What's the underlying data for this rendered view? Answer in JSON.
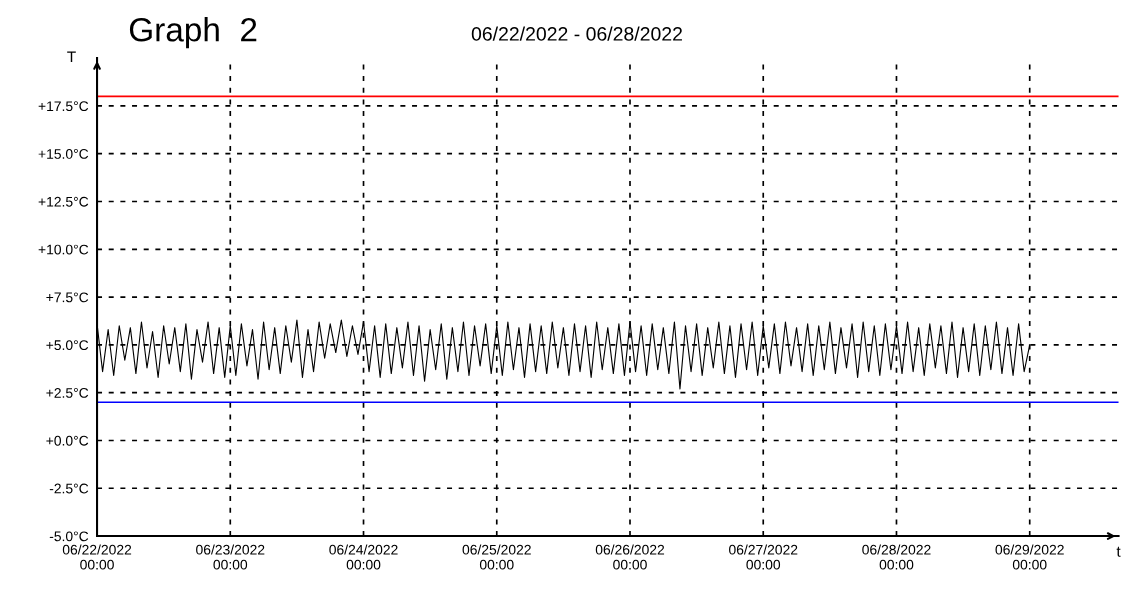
{
  "chart_data": {
    "type": "line",
    "title": "Graph  2",
    "subtitle": "06/22/2022 - 06/28/2022",
    "xlabel": "t",
    "ylabel": "T",
    "x": [
      "2022-06-22T00:00",
      "2022-06-22T01:00",
      "2022-06-22T02:00",
      "2022-06-22T03:00",
      "2022-06-22T04:00",
      "2022-06-22T05:00",
      "2022-06-22T06:00",
      "2022-06-22T07:00",
      "2022-06-22T08:00",
      "2022-06-22T09:00",
      "2022-06-22T10:00",
      "2022-06-22T11:00",
      "2022-06-22T12:00",
      "2022-06-22T13:00",
      "2022-06-22T14:00",
      "2022-06-22T15:00",
      "2022-06-22T16:00",
      "2022-06-22T17:00",
      "2022-06-22T18:00",
      "2022-06-22T19:00",
      "2022-06-22T20:00",
      "2022-06-22T21:00",
      "2022-06-22T22:00",
      "2022-06-22T23:00",
      "2022-06-23T00:00",
      "2022-06-23T01:00",
      "2022-06-23T02:00",
      "2022-06-23T03:00",
      "2022-06-23T04:00",
      "2022-06-23T05:00",
      "2022-06-23T06:00",
      "2022-06-23T07:00",
      "2022-06-23T08:00",
      "2022-06-23T09:00",
      "2022-06-23T10:00",
      "2022-06-23T11:00",
      "2022-06-23T12:00",
      "2022-06-23T13:00",
      "2022-06-23T14:00",
      "2022-06-23T15:00",
      "2022-06-23T16:00",
      "2022-06-23T17:00",
      "2022-06-23T18:00",
      "2022-06-23T19:00",
      "2022-06-23T20:00",
      "2022-06-23T21:00",
      "2022-06-23T22:00",
      "2022-06-23T23:00",
      "2022-06-24T00:00",
      "2022-06-24T01:00",
      "2022-06-24T02:00",
      "2022-06-24T03:00",
      "2022-06-24T04:00",
      "2022-06-24T05:00",
      "2022-06-24T06:00",
      "2022-06-24T07:00",
      "2022-06-24T08:00",
      "2022-06-24T09:00",
      "2022-06-24T10:00",
      "2022-06-24T11:00",
      "2022-06-24T12:00",
      "2022-06-24T13:00",
      "2022-06-24T14:00",
      "2022-06-24T15:00",
      "2022-06-24T16:00",
      "2022-06-24T17:00",
      "2022-06-24T18:00",
      "2022-06-24T19:00",
      "2022-06-24T20:00",
      "2022-06-24T21:00",
      "2022-06-24T22:00",
      "2022-06-24T23:00",
      "2022-06-25T00:00",
      "2022-06-25T01:00",
      "2022-06-25T02:00",
      "2022-06-25T03:00",
      "2022-06-25T04:00",
      "2022-06-25T05:00",
      "2022-06-25T06:00",
      "2022-06-25T07:00",
      "2022-06-25T08:00",
      "2022-06-25T09:00",
      "2022-06-25T10:00",
      "2022-06-25T11:00",
      "2022-06-25T12:00",
      "2022-06-25T13:00",
      "2022-06-25T14:00",
      "2022-06-25T15:00",
      "2022-06-25T16:00",
      "2022-06-25T17:00",
      "2022-06-25T18:00",
      "2022-06-25T19:00",
      "2022-06-25T20:00",
      "2022-06-25T21:00",
      "2022-06-25T22:00",
      "2022-06-25T23:00",
      "2022-06-26T00:00",
      "2022-06-26T01:00",
      "2022-06-26T02:00",
      "2022-06-26T03:00",
      "2022-06-26T04:00",
      "2022-06-26T05:00",
      "2022-06-26T06:00",
      "2022-06-26T07:00",
      "2022-06-26T08:00",
      "2022-06-26T09:00",
      "2022-06-26T10:00",
      "2022-06-26T11:00",
      "2022-06-26T12:00",
      "2022-06-26T13:00",
      "2022-06-26T14:00",
      "2022-06-26T15:00",
      "2022-06-26T16:00",
      "2022-06-26T17:00",
      "2022-06-26T18:00",
      "2022-06-26T19:00",
      "2022-06-26T20:00",
      "2022-06-26T21:00",
      "2022-06-26T22:00",
      "2022-06-26T23:00",
      "2022-06-27T00:00",
      "2022-06-27T01:00",
      "2022-06-27T02:00",
      "2022-06-27T03:00",
      "2022-06-27T04:00",
      "2022-06-27T05:00",
      "2022-06-27T06:00",
      "2022-06-27T07:00",
      "2022-06-27T08:00",
      "2022-06-27T09:00",
      "2022-06-27T10:00",
      "2022-06-27T11:00",
      "2022-06-27T12:00",
      "2022-06-27T13:00",
      "2022-06-27T14:00",
      "2022-06-27T15:00",
      "2022-06-27T16:00",
      "2022-06-27T17:00",
      "2022-06-27T18:00",
      "2022-06-27T19:00",
      "2022-06-27T20:00",
      "2022-06-27T21:00",
      "2022-06-27T22:00",
      "2022-06-27T23:00",
      "2022-06-28T00:00",
      "2022-06-28T01:00",
      "2022-06-28T02:00",
      "2022-06-28T03:00",
      "2022-06-28T04:00",
      "2022-06-28T05:00",
      "2022-06-28T06:00",
      "2022-06-28T07:00",
      "2022-06-28T08:00",
      "2022-06-28T09:00",
      "2022-06-28T10:00",
      "2022-06-28T11:00",
      "2022-06-28T12:00",
      "2022-06-28T13:00",
      "2022-06-28T14:00",
      "2022-06-28T15:00",
      "2022-06-28T16:00",
      "2022-06-28T17:00",
      "2022-06-28T18:00",
      "2022-06-28T19:00",
      "2022-06-28T20:00",
      "2022-06-28T21:00",
      "2022-06-28T22:00",
      "2022-06-28T23:00",
      "2022-06-29T00:00"
    ],
    "series": [
      {
        "color": "#000000",
        "values": [
          6.1,
          3.6,
          5.8,
          3.4,
          6.0,
          4.2,
          5.9,
          3.5,
          6.2,
          3.8,
          5.7,
          3.3,
          6.0,
          4.0,
          5.9,
          3.6,
          6.1,
          3.2,
          5.8,
          4.1,
          6.2,
          3.5,
          5.9,
          3.3,
          6.0,
          3.4,
          6.1,
          3.9,
          5.8,
          3.2,
          6.2,
          3.7,
          5.9,
          3.5,
          6.0,
          4.1,
          6.3,
          3.3,
          5.8,
          3.6,
          6.2,
          4.3,
          6.1,
          4.6,
          6.3,
          4.4,
          6.0,
          4.5,
          6.2,
          3.6,
          6.0,
          3.3,
          6.1,
          3.5,
          5.9,
          3.8,
          6.2,
          3.4,
          6.0,
          3.1,
          5.8,
          3.7,
          6.1,
          3.2,
          5.9,
          3.6,
          6.2,
          3.4,
          6.0,
          3.9,
          6.1,
          3.5,
          6.0,
          3.4,
          6.2,
          3.7,
          5.9,
          3.3,
          6.1,
          3.6,
          6.0,
          3.5,
          6.2,
          3.8,
          5.9,
          3.4,
          6.1,
          3.6,
          6.0,
          3.3,
          6.2,
          3.7,
          5.9,
          3.5,
          6.1,
          3.4,
          6.2,
          3.6,
          6.0,
          3.4,
          6.1,
          3.7,
          5.9,
          3.5,
          6.2,
          2.7,
          6.0,
          3.6,
          6.1,
          3.4,
          5.9,
          3.8,
          6.2,
          3.5,
          6.0,
          3.3,
          6.1,
          3.7,
          6.2,
          3.4,
          6.0,
          3.8,
          6.1,
          3.5,
          6.2,
          3.9,
          5.9,
          3.6,
          6.1,
          3.4,
          6.0,
          3.7,
          6.2,
          3.5,
          5.9,
          3.8,
          6.1,
          3.3,
          6.2,
          3.6,
          6.0,
          3.4,
          6.1,
          3.7,
          6.0,
          3.5,
          6.2,
          3.6,
          5.9,
          3.4,
          6.1,
          3.8,
          6.0,
          3.5,
          6.2,
          3.3,
          5.9,
          3.6,
          6.1,
          3.4,
          6.0,
          3.7,
          6.2,
          3.5,
          5.9,
          3.4,
          6.1,
          3.6,
          5.0
        ]
      }
    ],
    "xlim": [
      "2022-06-22T00:00",
      "2022-06-29T16:00"
    ],
    "xticks": [
      {
        "value": "2022-06-22",
        "label": "06/22/2022\n00:00"
      },
      {
        "value": "2022-06-23",
        "label": "06/23/2022\n00:00"
      },
      {
        "value": "2022-06-24",
        "label": "06/24/2022\n00:00"
      },
      {
        "value": "2022-06-25",
        "label": "06/25/2022\n00:00"
      },
      {
        "value": "2022-06-26",
        "label": "06/26/2022\n00:00"
      },
      {
        "value": "2022-06-27",
        "label": "06/27/2022\n00:00"
      },
      {
        "value": "2022-06-28",
        "label": "06/28/2022\n00:00"
      },
      {
        "value": "2022-06-29",
        "label": "06/29/2022\n00:00"
      }
    ],
    "ylim": [
      -5,
      20
    ],
    "yticks": [
      {
        "value": -5,
        "label": "-5.0°C"
      },
      {
        "value": -2.5,
        "label": "-2.5°C"
      },
      {
        "value": 0,
        "label": "+0.0°C"
      },
      {
        "value": 2.5,
        "label": "+2.5°C"
      },
      {
        "value": 5,
        "label": "+5.0°C"
      },
      {
        "value": 7.5,
        "label": "+7.5°C"
      },
      {
        "value": 10,
        "label": "+10.0°C"
      },
      {
        "value": 12.5,
        "label": "+12.5°C"
      },
      {
        "value": 15,
        "label": "+15.0°C"
      },
      {
        "value": 17.5,
        "label": "+17.5°C"
      }
    ],
    "ref_lines": [
      {
        "axis": "y",
        "value": 18,
        "color": "#ff0000"
      },
      {
        "axis": "y",
        "value": 2,
        "color": "#0000ff"
      }
    ],
    "grid": true,
    "marker": "none",
    "line_style": "solid"
  }
}
